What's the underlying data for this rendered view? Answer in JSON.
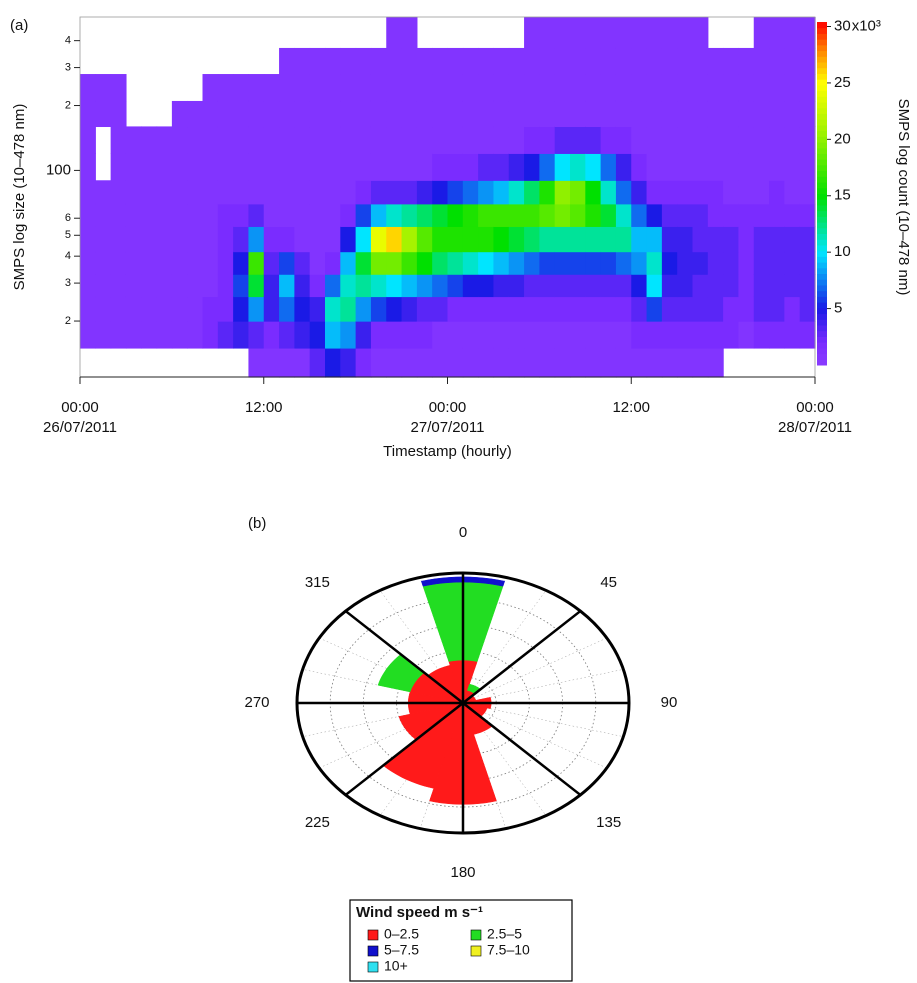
{
  "chart_data": [
    {
      "type": "heatmap",
      "panel_label": "(a)",
      "xlabel": "Timestamp (hourly)",
      "ylabel": "SMPS log size (10–478 nm)",
      "colorbar_label": "SMPS log count (10–478 nm)",
      "x": [
        "2011-07-26T00:00",
        "2011-07-26T01:00",
        "2011-07-26T02:00",
        "2011-07-26T03:00",
        "2011-07-26T04:00",
        "2011-07-26T05:00",
        "2011-07-26T06:00",
        "2011-07-26T07:00",
        "2011-07-26T08:00",
        "2011-07-26T09:00",
        "2011-07-26T10:00",
        "2011-07-26T11:00",
        "2011-07-26T12:00",
        "2011-07-26T13:00",
        "2011-07-26T14:00",
        "2011-07-26T15:00",
        "2011-07-26T16:00",
        "2011-07-26T17:00",
        "2011-07-26T18:00",
        "2011-07-26T19:00",
        "2011-07-26T20:00",
        "2011-07-26T21:00",
        "2011-07-26T22:00",
        "2011-07-26T23:00",
        "2011-07-27T00:00",
        "2011-07-27T01:00",
        "2011-07-27T02:00",
        "2011-07-27T03:00",
        "2011-07-27T04:00",
        "2011-07-27T05:00",
        "2011-07-27T06:00",
        "2011-07-27T07:00",
        "2011-07-27T08:00",
        "2011-07-27T09:00",
        "2011-07-27T10:00",
        "2011-07-27T11:00",
        "2011-07-27T12:00",
        "2011-07-27T13:00",
        "2011-07-27T14:00",
        "2011-07-27T15:00",
        "2011-07-27T16:00",
        "2011-07-27T17:00",
        "2011-07-27T18:00",
        "2011-07-27T19:00",
        "2011-07-27T20:00",
        "2011-07-27T21:00",
        "2011-07-27T22:00",
        "2011-07-27T23:00"
      ],
      "size_bins": [
        11,
        15,
        20,
        26,
        33,
        42,
        55,
        70,
        90,
        120,
        160,
        210,
        280,
        370,
        515
      ],
      "values": [
        [
          null,
          1,
          1,
          1,
          1,
          1,
          1,
          1,
          1,
          1,
          1,
          1,
          null,
          null
        ],
        [
          null,
          1,
          1,
          1,
          1,
          1,
          1,
          1,
          null,
          null,
          1,
          1,
          null,
          null
        ],
        [
          null,
          1,
          1,
          1,
          1,
          1,
          1,
          1,
          1,
          1,
          1,
          1,
          null,
          null
        ],
        [
          null,
          1,
          1,
          1,
          1,
          1,
          1,
          1,
          1,
          1,
          null,
          null,
          null,
          null
        ],
        [
          null,
          1,
          1,
          1,
          1,
          1,
          1,
          1,
          1,
          1,
          null,
          null,
          null,
          null
        ],
        [
          null,
          1,
          1,
          1,
          1,
          1,
          1,
          1,
          1,
          1,
          null,
          null,
          null,
          null
        ],
        [
          null,
          1,
          1,
          1,
          1,
          1,
          1,
          1,
          1,
          1,
          1,
          null,
          null,
          null
        ],
        [
          null,
          1,
          1,
          1,
          1,
          1,
          1,
          1,
          1,
          1,
          1,
          null,
          null,
          null
        ],
        [
          null,
          2,
          2,
          1,
          1,
          1,
          1,
          1,
          1,
          1,
          1,
          1,
          null,
          null
        ],
        [
          null,
          3,
          2,
          2,
          2,
          2,
          2,
          1,
          1,
          1,
          1,
          1,
          null,
          null
        ],
        [
          null,
          4,
          5,
          6,
          5,
          3,
          2,
          1,
          1,
          1,
          1,
          1,
          null,
          null
        ],
        [
          1,
          3,
          8,
          14,
          17,
          8,
          3,
          1,
          1,
          1,
          1,
          1,
          null,
          null
        ],
        [
          1,
          2,
          4,
          4,
          3,
          2,
          1,
          1,
          1,
          1,
          1,
          1,
          null,
          null
        ],
        [
          1,
          3,
          7,
          9,
          6,
          2,
          1,
          1,
          1,
          1,
          1,
          1,
          1,
          null
        ],
        [
          1,
          4,
          5,
          4,
          3,
          1,
          1,
          1,
          1,
          1,
          1,
          1,
          1,
          null
        ],
        [
          3,
          5,
          4,
          2,
          1,
          1,
          1,
          1,
          1,
          1,
          1,
          1,
          1,
          null
        ],
        [
          5,
          9,
          11,
          7,
          2,
          1,
          1,
          1,
          1,
          1,
          1,
          1,
          1,
          null
        ],
        [
          4,
          8,
          12,
          11,
          9,
          5,
          2,
          1,
          1,
          1,
          1,
          1,
          1,
          null
        ],
        [
          2,
          4,
          8,
          12,
          14,
          10,
          6,
          2,
          1,
          1,
          1,
          1,
          1,
          null
        ],
        [
          1,
          2,
          6,
          11,
          19,
          24,
          9,
          3,
          1,
          1,
          1,
          1,
          1,
          null
        ],
        [
          1,
          2,
          5,
          10,
          19,
          26,
          11,
          3,
          1,
          1,
          1,
          1,
          1,
          1
        ],
        [
          1,
          2,
          4,
          9,
          17,
          21,
          12,
          3,
          1,
          1,
          1,
          1,
          1,
          1
        ],
        [
          1,
          2,
          3,
          8,
          15,
          18,
          13,
          4,
          1,
          1,
          1,
          1,
          1,
          null
        ],
        [
          1,
          1,
          3,
          7,
          13,
          16,
          14,
          5,
          2,
          1,
          1,
          1,
          1,
          null
        ],
        [
          1,
          1,
          2,
          6,
          12,
          16,
          15,
          6,
          2,
          1,
          1,
          1,
          1,
          null
        ],
        [
          1,
          1,
          2,
          5,
          11,
          16,
          16,
          7,
          2,
          1,
          1,
          1,
          1,
          null
        ],
        [
          1,
          1,
          2,
          5,
          10,
          16,
          17,
          8,
          3,
          1,
          1,
          1,
          1,
          null
        ],
        [
          1,
          1,
          2,
          4,
          9,
          15,
          17,
          9,
          3,
          1,
          1,
          1,
          1,
          null
        ],
        [
          1,
          1,
          2,
          4,
          8,
          14,
          17,
          11,
          4,
          1,
          1,
          1,
          1,
          null
        ],
        [
          1,
          1,
          2,
          3,
          7,
          13,
          17,
          13,
          5,
          2,
          1,
          1,
          1,
          1
        ],
        [
          1,
          1,
          2,
          3,
          6,
          12,
          18,
          16,
          7,
          2,
          1,
          1,
          1,
          1
        ],
        [
          1,
          1,
          2,
          3,
          6,
          12,
          19,
          20,
          10,
          3,
          1,
          1,
          1,
          1
        ],
        [
          1,
          1,
          2,
          3,
          6,
          12,
          18,
          19,
          11,
          3,
          1,
          1,
          1,
          1
        ],
        [
          1,
          1,
          2,
          3,
          6,
          12,
          16,
          15,
          10,
          3,
          1,
          1,
          1,
          1
        ],
        [
          1,
          1,
          2,
          3,
          6,
          12,
          14,
          11,
          7,
          2,
          1,
          1,
          1,
          1
        ],
        [
          1,
          1,
          2,
          3,
          7,
          12,
          11,
          7,
          4,
          2,
          1,
          1,
          1,
          1
        ],
        [
          1,
          2,
          3,
          5,
          8,
          9,
          7,
          4,
          2,
          1,
          1,
          1,
          1,
          1
        ],
        [
          1,
          2,
          6,
          10,
          11,
          9,
          5,
          2,
          1,
          1,
          1,
          1,
          1,
          1
        ],
        [
          1,
          2,
          3,
          4,
          5,
          4,
          3,
          2,
          1,
          1,
          1,
          1,
          1,
          1
        ],
        [
          1,
          2,
          3,
          4,
          4,
          4,
          3,
          2,
          1,
          1,
          1,
          1,
          1,
          1
        ],
        [
          1,
          2,
          3,
          3,
          4,
          3,
          3,
          2,
          1,
          1,
          1,
          1,
          1,
          1
        ],
        [
          1,
          2,
          3,
          3,
          3,
          3,
          2,
          2,
          1,
          1,
          1,
          1,
          1,
          null
        ],
        [
          null,
          2,
          2,
          3,
          3,
          3,
          2,
          1,
          1,
          1,
          1,
          1,
          1,
          null
        ],
        [
          null,
          1,
          2,
          2,
          2,
          2,
          2,
          1,
          1,
          1,
          1,
          1,
          1,
          null
        ],
        [
          null,
          2,
          3,
          3,
          3,
          3,
          2,
          1,
          1,
          1,
          1,
          1,
          1,
          1
        ],
        [
          null,
          2,
          3,
          3,
          3,
          3,
          2,
          2,
          1,
          1,
          1,
          1,
          1,
          1
        ],
        [
          null,
          2,
          2,
          3,
          3,
          3,
          2,
          1,
          1,
          1,
          1,
          1,
          1,
          1
        ],
        [
          null,
          2,
          3,
          3,
          3,
          3,
          2,
          1,
          1,
          1,
          1,
          1,
          1,
          1
        ]
      ],
      "log_y": true,
      "ylim": [
        11,
        515
      ],
      "yticks": [
        {
          "value": 20,
          "label": "2"
        },
        {
          "value": 30,
          "label": "3"
        },
        {
          "value": 40,
          "label": "4"
        },
        {
          "value": 50,
          "label": "5"
        },
        {
          "value": 60,
          "label": "6"
        },
        100,
        {
          "value": 200,
          "label": "2"
        },
        {
          "value": 300,
          "label": "3"
        },
        {
          "value": 400,
          "label": "4"
        }
      ],
      "xlim": [
        "2011-07-26T00:00",
        "2011-07-28T00:00"
      ],
      "xticks": [
        {
          "value": "2011-07-26T00:00",
          "label": [
            "00:00",
            "26/07/2011"
          ]
        },
        {
          "value": "2011-07-26T12:00",
          "label": [
            "12:00"
          ]
        },
        {
          "value": "2011-07-27T00:00",
          "label": [
            "00:00",
            "27/07/2011"
          ]
        },
        {
          "value": "2011-07-27T12:00",
          "label": [
            "12:00"
          ]
        },
        {
          "value": "2011-07-28T00:00",
          "label": [
            "00:00",
            "28/07/2011"
          ]
        }
      ],
      "clim": [
        0,
        30.4
      ],
      "cticks": [
        5,
        10,
        15,
        20,
        25,
        30
      ],
      "colorbar_multiplier": "x10³",
      "colormap": [
        [
          0,
          "#8a3cff"
        ],
        [
          2,
          "#7a2cff"
        ],
        [
          5,
          "#1a1ae6"
        ],
        [
          10,
          "#00e5ff"
        ],
        [
          15,
          "#00e000"
        ],
        [
          20,
          "#90f000"
        ],
        [
          25,
          "#ffff00"
        ],
        [
          28,
          "#ff8000"
        ],
        [
          30.4,
          "#ff0000"
        ]
      ]
    },
    {
      "type": "windrose",
      "panel_label": "(b)",
      "legend_title": "Wind speed m s⁻¹",
      "directions": [
        0,
        30,
        60,
        90,
        120,
        150,
        180,
        210,
        240,
        270,
        300,
        330
      ],
      "sector_width": 30,
      "series": [
        {
          "name": "0–2.5",
          "color": "#ff1a1a",
          "values": [
            3.3,
            1.0,
            0.8,
            1.7,
            1.5,
            2.5,
            7.8,
            6.8,
            4.0,
            3.3,
            3.3,
            3.0
          ]
        },
        {
          "name": "2.5–5",
          "color": "#22dd22",
          "values": [
            6.0,
            0.5,
            0,
            0,
            0,
            0,
            0,
            0,
            0,
            0,
            2.0,
            0
          ]
        },
        {
          "name": "5–7.5",
          "color": "#1010cc",
          "values": [
            0.4,
            0,
            0,
            0,
            0,
            0,
            0,
            0,
            0,
            0,
            0,
            0
          ]
        },
        {
          "name": "7.5–10",
          "color": "#f0f020",
          "values": [
            0,
            0,
            0,
            0,
            0,
            0,
            0,
            0,
            0,
            0,
            0,
            0
          ]
        },
        {
          "name": "10+",
          "color": "#30e0f0",
          "values": [
            0,
            0,
            0,
            0,
            0,
            0,
            0,
            0,
            0,
            0,
            0,
            0
          ]
        }
      ],
      "rlim": [
        0,
        10
      ],
      "rticks": [
        2,
        4,
        6,
        8,
        10
      ],
      "angle_ticks": [
        0,
        45,
        90,
        135,
        180,
        225,
        270,
        315
      ]
    }
  ]
}
